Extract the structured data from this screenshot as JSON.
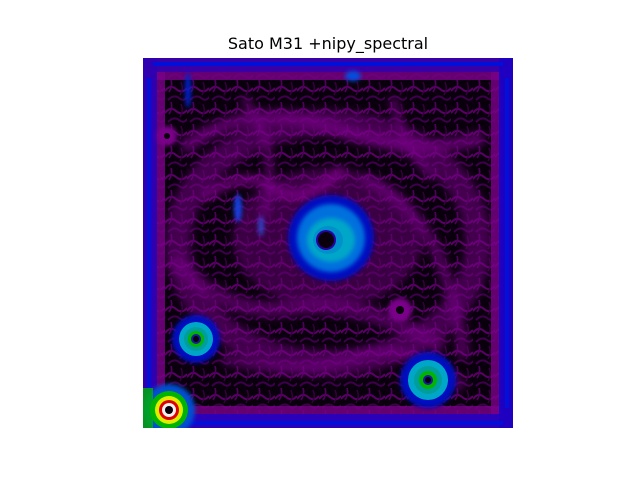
{
  "figure": {
    "title": "Sato M31 +nipy_spectral"
  },
  "image": {
    "description_colormap": "nipy_spectral",
    "colors": {
      "background": "#0a000d",
      "purple": "#7a008a",
      "deep_purple": "#4b0059",
      "blue": "#0010d8",
      "light_blue": "#0070dd",
      "cyan": "#00a6c8",
      "teal": "#009e9a",
      "green": "#00b400",
      "yellow": "#ddee00",
      "red": "#e00000",
      "white": "#f0f0f0"
    }
  }
}
